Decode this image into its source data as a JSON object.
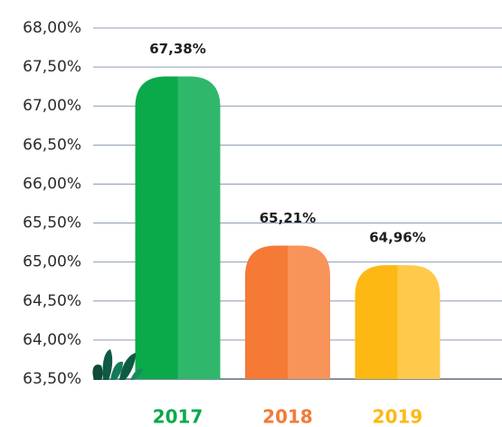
{
  "chart_data": {
    "type": "bar",
    "categories": [
      "2017",
      "2018",
      "2019"
    ],
    "values": [
      67.38,
      65.21,
      64.96
    ],
    "value_labels": [
      "67,38%",
      "65,21%",
      "64,96%"
    ],
    "colors": [
      "#0aa94a",
      "#f47a36",
      "#fdb813"
    ],
    "highlight_colors": [
      "#2fb86c",
      "#f8935a",
      "#ffc94c"
    ],
    "ylim": [
      63.5,
      68
    ],
    "yticks": [
      {
        "value": 63.5,
        "label": "63,50%"
      },
      {
        "value": 64,
        "label": "64,00%"
      },
      {
        "value": 64.5,
        "label": "64,50%"
      },
      {
        "value": 65,
        "label": "65,00%"
      },
      {
        "value": 65.5,
        "label": "65,50%"
      },
      {
        "value": 66,
        "label": "66,00%"
      },
      {
        "value": 66.5,
        "label": "66,50%"
      },
      {
        "value": 67,
        "label": "67,00%"
      },
      {
        "value": 67.5,
        "label": "67,50%"
      },
      {
        "value": 68,
        "label": "68,00%"
      }
    ],
    "grid": true
  }
}
